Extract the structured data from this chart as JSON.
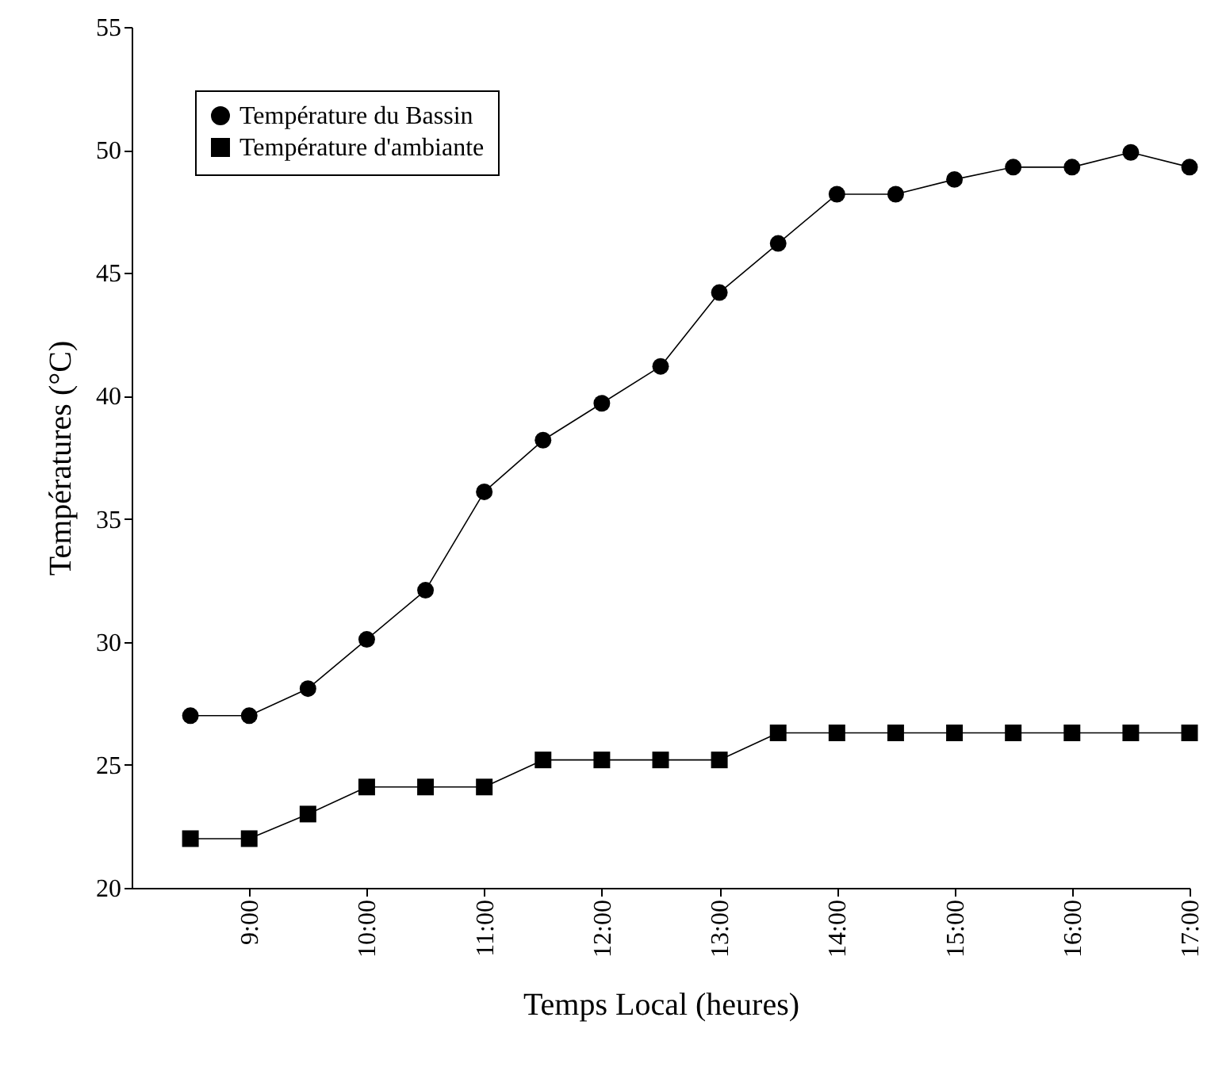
{
  "chart_data": {
    "type": "line",
    "xlabel": "Temps Local (heures)",
    "ylabel": "Températures (°C)",
    "x": [
      8.5,
      9,
      9.5,
      10,
      10.5,
      11,
      11.5,
      12,
      12.5,
      13,
      13.5,
      14,
      14.5,
      15,
      15.5,
      16,
      16.5,
      17
    ],
    "series": [
      {
        "name": "Température du Bassin",
        "color": "#000000",
        "marker": "circle",
        "values": [
          27.0,
          27.0,
          28.1,
          30.1,
          32.1,
          36.1,
          38.2,
          39.7,
          41.2,
          44.2,
          46.2,
          48.2,
          48.2,
          48.8,
          49.3,
          49.3,
          49.9,
          49.3
        ]
      },
      {
        "name": "Température d'ambiante",
        "color": "#000000",
        "marker": "square",
        "values": [
          22.0,
          22.0,
          23.0,
          24.1,
          24.1,
          24.1,
          25.2,
          25.2,
          25.2,
          25.2,
          26.3,
          26.3,
          26.3,
          26.3,
          26.3,
          26.3,
          26.3,
          26.3
        ]
      }
    ],
    "xlim": [
      8,
      17
    ],
    "xticks": [
      {
        "value": 9,
        "label": "9:00"
      },
      {
        "value": 10,
        "label": "10:00"
      },
      {
        "value": 11,
        "label": "11:00"
      },
      {
        "value": 12,
        "label": "12:00"
      },
      {
        "value": 13,
        "label": "13:00"
      },
      {
        "value": 14,
        "label": "14:00"
      },
      {
        "value": 15,
        "label": "15:00"
      },
      {
        "value": 16,
        "label": "16:00"
      },
      {
        "value": 17,
        "label": "17:00"
      }
    ],
    "ylim": [
      20,
      55
    ],
    "yticks": [
      20,
      25,
      30,
      35,
      40,
      45,
      50,
      55
    ],
    "grid": false,
    "legend": "top left",
    "line_style": "solid"
  }
}
